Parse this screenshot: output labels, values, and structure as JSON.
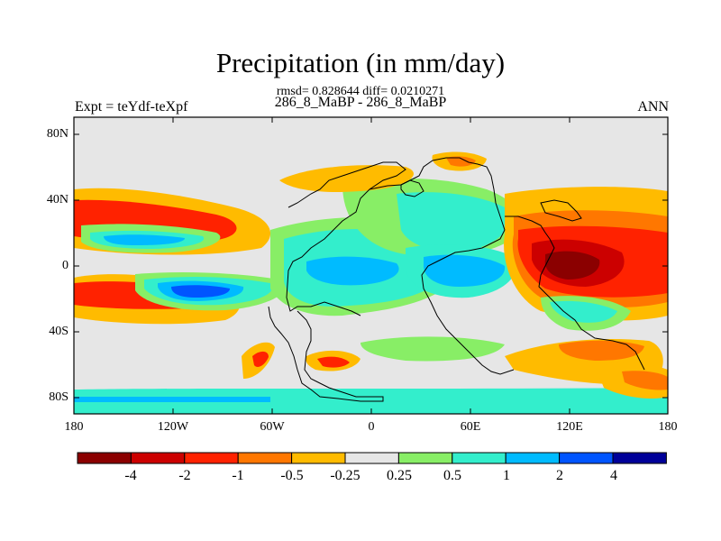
{
  "header": {
    "title": "Precipitation (in mm/day)",
    "stats": "rmsd= 0.828644 diff= 0.0210271",
    "subtitle": "286_8_MaBP - 286_8_MaBP",
    "left_string": "Expt = teYdf-teXpf",
    "right_string": "ANN"
  },
  "axes": {
    "lat_labels": [
      "80N",
      "40N",
      "0",
      "40S",
      "80S"
    ],
    "lon_labels": [
      "180",
      "120W",
      "60W",
      "0",
      "60E",
      "120E",
      "180"
    ]
  },
  "colorbar": {
    "colors": [
      "#8b0000",
      "#cc0000",
      "#ff2200",
      "#ff7700",
      "#ffbb00",
      "#e6e6e6",
      "#88ee66",
      "#33eecc",
      "#00bbff",
      "#0055ff",
      "#000099"
    ],
    "labels": [
      "-4",
      "-2",
      "-1",
      "-0.5",
      "-0.25",
      "0.25",
      "0.5",
      "1",
      "2",
      "4"
    ]
  },
  "map_colors": {
    "background": "#e6e6e6",
    "strong_neg": "#cc0000",
    "mid_neg": "#ff2200",
    "neg": "#ff7700",
    "weak_neg": "#ffbb00",
    "weak_pos": "#88ee66",
    "pos": "#33eecc",
    "mid_pos": "#00bbff",
    "strong_pos": "#0055ff",
    "max_neg": "#8b0000"
  }
}
